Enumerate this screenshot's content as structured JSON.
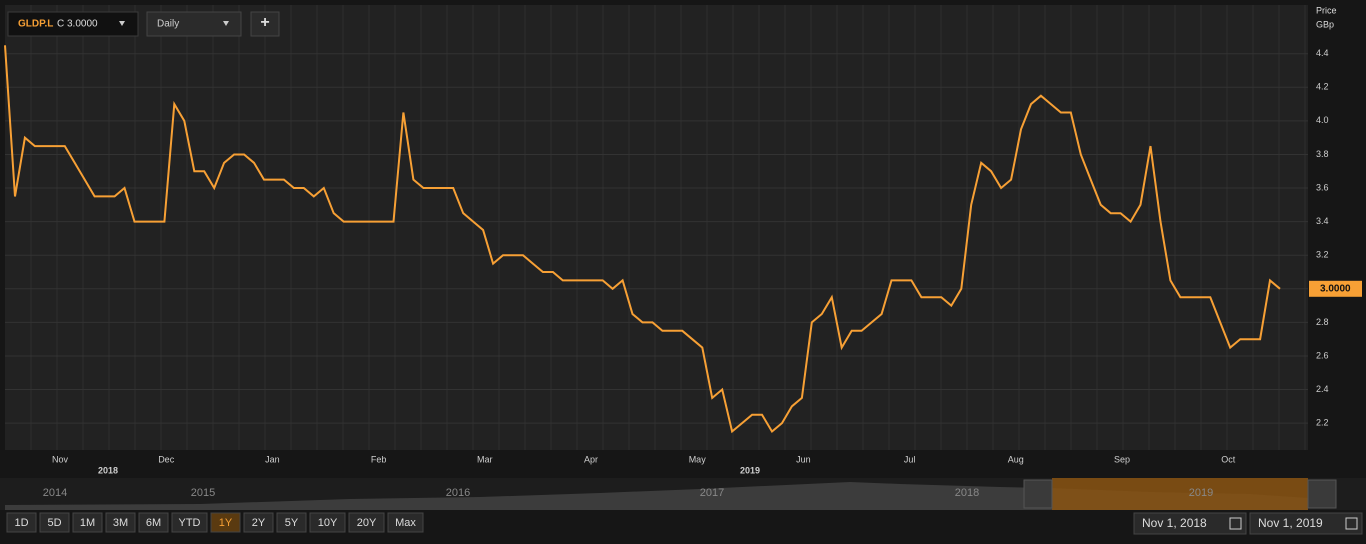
{
  "header": {
    "symbol": "GLDP.L",
    "quote": "C 3.0000",
    "interval": "Daily",
    "add": "+"
  },
  "axis_title": [
    "Price",
    "GBp"
  ],
  "price_marker": "3.0000",
  "chart_data": {
    "type": "line",
    "color": "#f7a035",
    "grid": true,
    "ylim": [
      2.04,
      4.69
    ],
    "yticks": [
      2.2,
      2.4,
      2.6,
      2.8,
      {
        "value": 3,
        "label": "3.0"
      },
      3.2,
      3.4,
      3.6,
      3.8,
      {
        "value": 4,
        "label": "4.0"
      },
      4.2,
      4.4
    ],
    "x_labels": [
      "Nov",
      "Dec",
      "Jan",
      "Feb",
      "Mar",
      "Apr",
      "May",
      "Jun",
      "Jul",
      "Aug",
      "Sep",
      "Oct"
    ],
    "x_year_labels": [
      "2018",
      "2019"
    ],
    "values": [
      4.45,
      3.55,
      3.9,
      3.85,
      3.85,
      3.85,
      3.85,
      3.75,
      3.65,
      3.55,
      3.55,
      3.55,
      3.6,
      3.4,
      3.4,
      3.4,
      3.4,
      4.1,
      4.0,
      3.7,
      3.7,
      3.6,
      3.75,
      3.8,
      3.8,
      3.75,
      3.65,
      3.65,
      3.65,
      3.6,
      3.6,
      3.55,
      3.6,
      3.45,
      3.4,
      3.4,
      3.4,
      3.4,
      3.4,
      3.4,
      4.05,
      3.65,
      3.6,
      3.6,
      3.6,
      3.6,
      3.45,
      3.4,
      3.35,
      3.15,
      3.2,
      3.2,
      3.2,
      3.15,
      3.1,
      3.1,
      3.05,
      3.05,
      3.05,
      3.05,
      3.05,
      3.0,
      3.05,
      2.85,
      2.8,
      2.8,
      2.75,
      2.75,
      2.75,
      2.7,
      2.65,
      2.35,
      2.4,
      2.15,
      2.2,
      2.25,
      2.25,
      2.15,
      2.2,
      2.3,
      2.35,
      2.8,
      2.85,
      2.95,
      2.65,
      2.75,
      2.75,
      2.8,
      2.85,
      3.05,
      3.05,
      3.05,
      2.95,
      2.95,
      2.95,
      2.9,
      3.0,
      3.5,
      3.75,
      3.7,
      3.6,
      3.65,
      3.95,
      4.1,
      4.15,
      4.1,
      4.05,
      4.05,
      3.8,
      3.65,
      3.5,
      3.45,
      3.45,
      3.4,
      3.5,
      3.85,
      3.4,
      3.05,
      2.95,
      2.95,
      2.95,
      2.95,
      2.8,
      2.65,
      2.7,
      2.7,
      2.7,
      3.05,
      3.0
    ]
  },
  "navigator": {
    "years": [
      "2014",
      "2015",
      "2016",
      "2017",
      "2018",
      "2019"
    ]
  },
  "range_buttons": [
    "1D",
    "5D",
    "1M",
    "3M",
    "6M",
    "YTD",
    "1Y",
    "2Y",
    "5Y",
    "10Y",
    "20Y",
    "Max"
  ],
  "date_range": [
    "Nov 1, 2018",
    "Nov 1, 2019"
  ]
}
